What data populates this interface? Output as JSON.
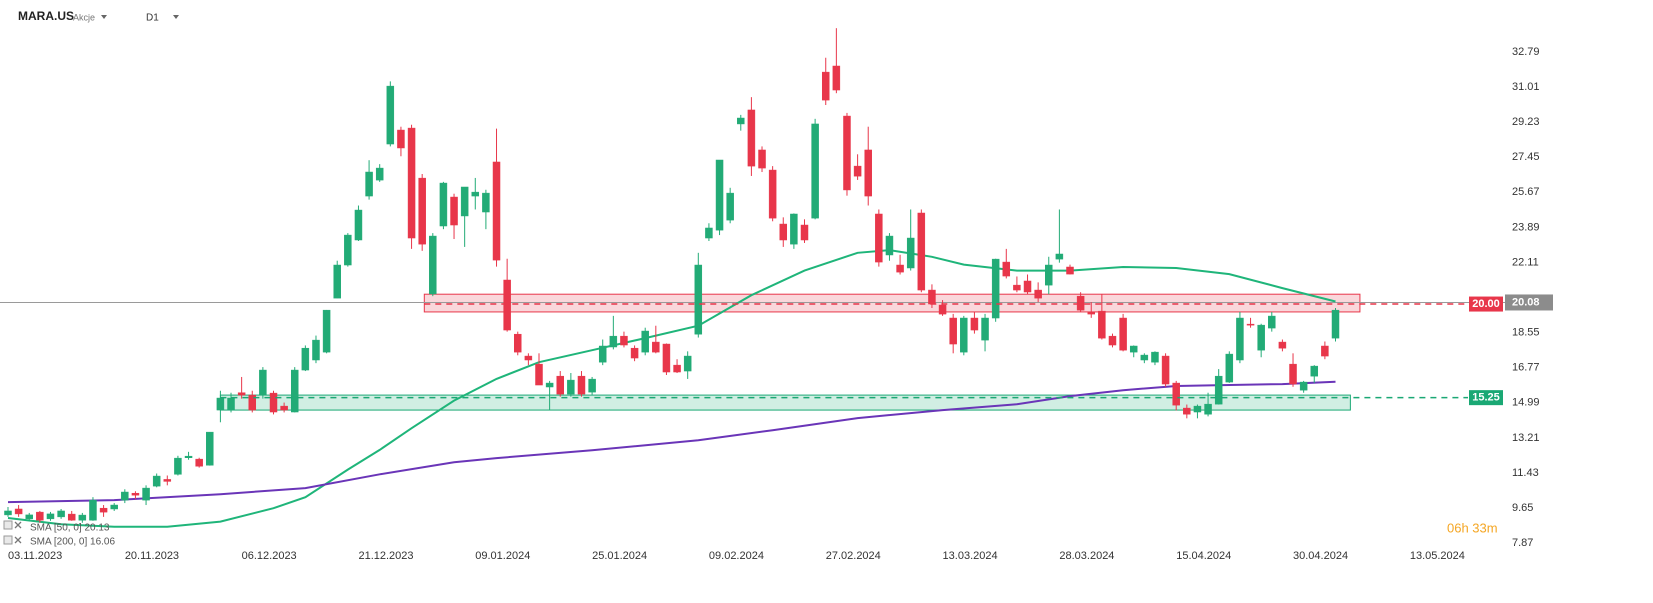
{
  "header": {
    "symbol": "MARA.US",
    "instrument_type": "Akcje",
    "interval": "D1"
  },
  "timer": "06h 33m",
  "chart_data": {
    "type": "candlestick",
    "up_color": "#22ab76",
    "down_color": "#e8364a",
    "ylim": [
      7.62,
      35.43
    ],
    "yticks": [
      7.87,
      9.65,
      11.43,
      13.21,
      14.99,
      16.77,
      18.55,
      22.11,
      23.89,
      25.67,
      27.45,
      29.23,
      31.01,
      32.79
    ],
    "xlim": [
      -0.753,
      140.96
    ],
    "xticks": [
      {
        "value": 0,
        "label": "03.11.2023"
      },
      {
        "value": 11,
        "label": "20.11.2023"
      },
      {
        "value": 22,
        "label": "06.12.2023"
      },
      {
        "value": 33,
        "label": "21.12.2023"
      },
      {
        "value": 44,
        "label": "09.01.2024"
      },
      {
        "value": 55,
        "label": "25.01.2024"
      },
      {
        "value": 66,
        "label": "09.02.2024"
      },
      {
        "value": 77,
        "label": "27.02.2024"
      },
      {
        "value": 88,
        "label": "13.03.2024"
      },
      {
        "value": 99,
        "label": "28.03.2024"
      },
      {
        "value": 110,
        "label": "15.04.2024"
      },
      {
        "value": 121,
        "label": "30.04.2024"
      },
      {
        "value": 132,
        "label": "13.05.2024"
      }
    ],
    "candles": [
      {
        "open": 9.3,
        "high": 9.7,
        "low": 9.2,
        "close": 9.5
      },
      {
        "open": 9.6,
        "high": 9.8,
        "low": 9.2,
        "close": 9.35
      },
      {
        "open": 9.1,
        "high": 9.4,
        "low": 9.0,
        "close": 9.3
      },
      {
        "open": 9.44,
        "high": 9.5,
        "low": 8.9,
        "close": 9.03
      },
      {
        "open": 9.1,
        "high": 9.45,
        "low": 9.0,
        "close": 9.35
      },
      {
        "open": 9.2,
        "high": 9.6,
        "low": 9.1,
        "close": 9.5
      },
      {
        "open": 9.34,
        "high": 9.5,
        "low": 9.0,
        "close": 9.03
      },
      {
        "open": 9.03,
        "high": 9.4,
        "low": 8.9,
        "close": 9.29
      },
      {
        "open": 9.03,
        "high": 10.2,
        "low": 9.0,
        "close": 10.05
      },
      {
        "open": 9.64,
        "high": 9.8,
        "low": 9.2,
        "close": 9.44
      },
      {
        "open": 9.6,
        "high": 9.9,
        "low": 9.5,
        "close": 9.8
      },
      {
        "open": 10.05,
        "high": 10.6,
        "low": 9.9,
        "close": 10.46
      },
      {
        "open": 10.4,
        "high": 10.5,
        "low": 10.1,
        "close": 10.3
      },
      {
        "open": 10.05,
        "high": 10.8,
        "low": 9.8,
        "close": 10.66
      },
      {
        "open": 10.76,
        "high": 11.4,
        "low": 10.7,
        "close": 11.27
      },
      {
        "open": 11.1,
        "high": 11.3,
        "low": 10.8,
        "close": 11.0
      },
      {
        "open": 11.36,
        "high": 12.3,
        "low": 11.3,
        "close": 12.18
      },
      {
        "open": 12.2,
        "high": 12.5,
        "low": 12.1,
        "close": 12.28
      },
      {
        "open": 12.13,
        "high": 12.2,
        "low": 11.7,
        "close": 11.77
      },
      {
        "open": 11.82,
        "high": 13.5,
        "low": 11.8,
        "close": 13.5
      },
      {
        "open": 14.62,
        "high": 15.6,
        "low": 14.0,
        "close": 15.23
      },
      {
        "open": 14.62,
        "high": 15.5,
        "low": 14.5,
        "close": 15.23
      },
      {
        "open": 15.5,
        "high": 16.3,
        "low": 15.2,
        "close": 15.38
      },
      {
        "open": 15.38,
        "high": 15.6,
        "low": 14.5,
        "close": 14.62
      },
      {
        "open": 15.38,
        "high": 16.8,
        "low": 15.2,
        "close": 16.65
      },
      {
        "open": 15.48,
        "high": 15.6,
        "low": 14.4,
        "close": 14.52
      },
      {
        "open": 14.82,
        "high": 15.0,
        "low": 14.5,
        "close": 14.62
      },
      {
        "open": 14.52,
        "high": 16.8,
        "low": 14.5,
        "close": 16.65
      },
      {
        "open": 16.65,
        "high": 17.9,
        "low": 16.6,
        "close": 17.76
      },
      {
        "open": 17.16,
        "high": 18.4,
        "low": 17.0,
        "close": 18.17
      },
      {
        "open": 17.56,
        "high": 19.7,
        "low": 17.5,
        "close": 19.69
      },
      {
        "open": 20.3,
        "high": 22.2,
        "low": 20.3,
        "close": 21.98
      },
      {
        "open": 21.98,
        "high": 23.6,
        "low": 21.9,
        "close": 23.5
      },
      {
        "open": 23.25,
        "high": 25.0,
        "low": 23.2,
        "close": 24.77
      },
      {
        "open": 25.48,
        "high": 27.3,
        "low": 25.3,
        "close": 26.7
      },
      {
        "open": 26.29,
        "high": 27.1,
        "low": 26.2,
        "close": 26.9
      },
      {
        "open": 28.12,
        "high": 31.3,
        "low": 28.0,
        "close": 31.06
      },
      {
        "open": 28.83,
        "high": 29.0,
        "low": 27.5,
        "close": 27.92
      },
      {
        "open": 28.93,
        "high": 29.1,
        "low": 22.8,
        "close": 23.35
      },
      {
        "open": 26.39,
        "high": 26.6,
        "low": 22.7,
        "close": 23.04
      },
      {
        "open": 20.51,
        "high": 23.6,
        "low": 20.4,
        "close": 23.45
      },
      {
        "open": 23.96,
        "high": 26.2,
        "low": 23.8,
        "close": 26.14
      },
      {
        "open": 25.43,
        "high": 25.6,
        "low": 23.3,
        "close": 24.01
      },
      {
        "open": 24.47,
        "high": 25.9,
        "low": 22.9,
        "close": 25.94
      },
      {
        "open": 25.48,
        "high": 26.4,
        "low": 24.8,
        "close": 25.68
      },
      {
        "open": 24.67,
        "high": 25.8,
        "low": 23.8,
        "close": 25.63
      },
      {
        "open": 27.21,
        "high": 28.9,
        "low": 21.9,
        "close": 22.23
      },
      {
        "open": 21.22,
        "high": 22.3,
        "low": 18.6,
        "close": 18.68
      },
      {
        "open": 18.47,
        "high": 18.6,
        "low": 17.4,
        "close": 17.56
      },
      {
        "open": 17.36,
        "high": 17.5,
        "low": 16.9,
        "close": 17.16
      },
      {
        "open": 16.95,
        "high": 17.5,
        "low": 15.9,
        "close": 15.89
      },
      {
        "open": 15.79,
        "high": 16.1,
        "low": 14.6,
        "close": 15.99
      },
      {
        "open": 16.34,
        "high": 16.6,
        "low": 15.3,
        "close": 15.43
      },
      {
        "open": 15.43,
        "high": 16.5,
        "low": 15.3,
        "close": 16.14
      },
      {
        "open": 16.34,
        "high": 16.6,
        "low": 15.3,
        "close": 15.43
      },
      {
        "open": 15.53,
        "high": 16.3,
        "low": 15.4,
        "close": 16.19
      },
      {
        "open": 17.05,
        "high": 18.2,
        "low": 16.9,
        "close": 17.87
      },
      {
        "open": 17.82,
        "high": 19.4,
        "low": 17.7,
        "close": 18.37
      },
      {
        "open": 18.37,
        "high": 18.6,
        "low": 17.8,
        "close": 17.92
      },
      {
        "open": 17.76,
        "high": 17.9,
        "low": 17.1,
        "close": 17.26
      },
      {
        "open": 17.56,
        "high": 18.8,
        "low": 17.4,
        "close": 18.63
      },
      {
        "open": 18.07,
        "high": 18.9,
        "low": 17.5,
        "close": 17.56
      },
      {
        "open": 17.97,
        "high": 18.0,
        "low": 16.4,
        "close": 16.55
      },
      {
        "open": 16.9,
        "high": 17.2,
        "low": 16.5,
        "close": 16.55
      },
      {
        "open": 16.6,
        "high": 17.6,
        "low": 16.2,
        "close": 17.36
      },
      {
        "open": 18.47,
        "high": 22.6,
        "low": 18.3,
        "close": 21.98
      },
      {
        "open": 23.35,
        "high": 24.1,
        "low": 23.2,
        "close": 23.86
      },
      {
        "open": 23.75,
        "high": 27.3,
        "low": 23.5,
        "close": 27.31
      },
      {
        "open": 24.26,
        "high": 25.9,
        "low": 24.1,
        "close": 25.63
      },
      {
        "open": 29.14,
        "high": 29.6,
        "low": 28.8,
        "close": 29.44
      },
      {
        "open": 29.85,
        "high": 30.5,
        "low": 26.5,
        "close": 27.0
      },
      {
        "open": 27.82,
        "high": 28.0,
        "low": 26.7,
        "close": 26.9
      },
      {
        "open": 26.8,
        "high": 27.0,
        "low": 24.2,
        "close": 24.36
      },
      {
        "open": 24.06,
        "high": 24.4,
        "low": 22.9,
        "close": 23.25
      },
      {
        "open": 23.04,
        "high": 24.6,
        "low": 22.8,
        "close": 24.57
      },
      {
        "open": 24.01,
        "high": 24.3,
        "low": 23.1,
        "close": 23.25
      },
      {
        "open": 24.36,
        "high": 29.4,
        "low": 24.3,
        "close": 29.14
      },
      {
        "open": 31.77,
        "high": 32.5,
        "low": 30.1,
        "close": 30.35
      },
      {
        "open": 32.08,
        "high": 34.0,
        "low": 30.7,
        "close": 30.86
      },
      {
        "open": 29.54,
        "high": 29.7,
        "low": 25.5,
        "close": 25.79
      },
      {
        "open": 27.0,
        "high": 27.6,
        "low": 26.3,
        "close": 26.49
      },
      {
        "open": 27.82,
        "high": 29.0,
        "low": 25.0,
        "close": 25.48
      },
      {
        "open": 24.57,
        "high": 24.8,
        "low": 21.9,
        "close": 22.13
      },
      {
        "open": 22.49,
        "high": 23.6,
        "low": 22.2,
        "close": 23.45
      },
      {
        "open": 21.98,
        "high": 22.5,
        "low": 21.5,
        "close": 21.62
      },
      {
        "open": 21.83,
        "high": 24.8,
        "low": 21.7,
        "close": 23.35
      },
      {
        "open": 24.62,
        "high": 24.8,
        "low": 20.6,
        "close": 20.71
      },
      {
        "open": 20.71,
        "high": 21.0,
        "low": 19.8,
        "close": 20.0
      },
      {
        "open": 19.95,
        "high": 20.2,
        "low": 19.4,
        "close": 19.49
      },
      {
        "open": 19.29,
        "high": 19.5,
        "low": 17.5,
        "close": 17.97
      },
      {
        "open": 17.56,
        "high": 19.4,
        "low": 17.4,
        "close": 19.29
      },
      {
        "open": 19.29,
        "high": 19.6,
        "low": 18.5,
        "close": 18.68
      },
      {
        "open": 18.17,
        "high": 19.5,
        "low": 17.6,
        "close": 19.29
      },
      {
        "open": 19.29,
        "high": 22.3,
        "low": 19.1,
        "close": 22.28
      },
      {
        "open": 22.13,
        "high": 22.8,
        "low": 21.3,
        "close": 21.42
      },
      {
        "open": 20.96,
        "high": 21.4,
        "low": 20.6,
        "close": 20.71
      },
      {
        "open": 21.17,
        "high": 21.5,
        "low": 20.5,
        "close": 20.61
      },
      {
        "open": 20.71,
        "high": 21.1,
        "low": 20.1,
        "close": 20.3
      },
      {
        "open": 20.96,
        "high": 22.4,
        "low": 20.5,
        "close": 21.98
      },
      {
        "open": 22.28,
        "high": 24.8,
        "low": 22.1,
        "close": 22.54
      },
      {
        "open": 21.88,
        "high": 22.0,
        "low": 21.5,
        "close": 21.52
      },
      {
        "open": 20.4,
        "high": 20.6,
        "low": 19.6,
        "close": 19.69
      },
      {
        "open": 19.59,
        "high": 20.1,
        "low": 19.3,
        "close": 19.49
      },
      {
        "open": 19.64,
        "high": 20.5,
        "low": 18.2,
        "close": 18.27
      },
      {
        "open": 18.37,
        "high": 18.5,
        "low": 17.8,
        "close": 17.92
      },
      {
        "open": 19.29,
        "high": 19.5,
        "low": 17.6,
        "close": 17.66
      },
      {
        "open": 17.56,
        "high": 17.9,
        "low": 17.3,
        "close": 17.87
      },
      {
        "open": 17.16,
        "high": 17.5,
        "low": 17.0,
        "close": 17.41
      },
      {
        "open": 17.05,
        "high": 17.6,
        "low": 16.9,
        "close": 17.56
      },
      {
        "open": 17.36,
        "high": 17.5,
        "low": 15.8,
        "close": 15.94
      },
      {
        "open": 15.99,
        "high": 16.1,
        "low": 14.6,
        "close": 14.87
      },
      {
        "open": 14.72,
        "high": 14.9,
        "low": 14.2,
        "close": 14.41
      },
      {
        "open": 14.52,
        "high": 14.9,
        "low": 14.2,
        "close": 14.82
      },
      {
        "open": 14.41,
        "high": 15.5,
        "low": 14.3,
        "close": 14.92
      },
      {
        "open": 14.92,
        "high": 16.7,
        "low": 14.9,
        "close": 16.34
      },
      {
        "open": 16.04,
        "high": 17.6,
        "low": 16.0,
        "close": 17.46
      },
      {
        "open": 17.16,
        "high": 19.6,
        "low": 17.0,
        "close": 19.29
      },
      {
        "open": 18.98,
        "high": 19.3,
        "low": 18.8,
        "close": 18.93
      },
      {
        "open": 17.66,
        "high": 19.0,
        "low": 17.3,
        "close": 18.93
      },
      {
        "open": 18.78,
        "high": 19.6,
        "low": 18.6,
        "close": 19.39
      },
      {
        "open": 18.07,
        "high": 18.2,
        "low": 17.6,
        "close": 17.76
      },
      {
        "open": 16.95,
        "high": 17.5,
        "low": 15.8,
        "close": 15.94
      },
      {
        "open": 15.63,
        "high": 16.1,
        "low": 15.5,
        "close": 16.04
      },
      {
        "open": 16.34,
        "high": 16.9,
        "low": 16.0,
        "close": 16.85
      },
      {
        "open": 17.87,
        "high": 18.1,
        "low": 17.2,
        "close": 17.36
      },
      {
        "open": 18.27,
        "high": 19.8,
        "low": 18.1,
        "close": 19.69
      }
    ],
    "overlays": [
      {
        "name": "SMA [50, 0] 20.13",
        "color": "#1fb57a",
        "x": [
          0,
          5,
          10,
          15,
          20,
          25,
          28,
          32,
          35,
          38,
          42,
          46,
          50,
          55,
          60,
          65,
          70,
          75,
          80,
          83,
          87,
          90,
          95,
          100,
          105,
          110,
          115,
          120,
          125
        ],
        "values": [
          9.14,
          8.83,
          8.7,
          8.7,
          8.96,
          9.64,
          10.2,
          11.6,
          12.6,
          13.7,
          15.1,
          16.2,
          17.05,
          17.66,
          18.27,
          18.9,
          20.45,
          21.7,
          22.6,
          22.74,
          22.4,
          22.0,
          21.7,
          21.7,
          21.88,
          21.83,
          21.52,
          20.81,
          20.13
        ]
      },
      {
        "name": "SMA [200, 0] 16.06",
        "color": "#6a35b8",
        "x": [
          0,
          10,
          20,
          28,
          35,
          42,
          46,
          55,
          65,
          72,
          80,
          88,
          95,
          100,
          105,
          110,
          115,
          120,
          125
        ],
        "values": [
          9.95,
          10.05,
          10.35,
          10.66,
          11.36,
          11.97,
          12.18,
          12.58,
          13.09,
          13.6,
          14.21,
          14.62,
          14.92,
          15.33,
          15.63,
          15.84,
          15.89,
          15.94,
          16.06
        ]
      }
    ],
    "zones": [
      {
        "low": 19.6,
        "high": 20.5,
        "start": 39.2,
        "end": 127.3,
        "color": "#e8364a"
      },
      {
        "low": 14.62,
        "high": 15.38,
        "start": 20,
        "end": 126.4,
        "color": "#1aa874"
      }
    ],
    "levels": [
      {
        "value": 20.0,
        "label": "20.00",
        "color": "#e8364a"
      },
      {
        "value": 15.25,
        "label": "15.25",
        "color": "#1aa874"
      }
    ],
    "last_price": 20.08
  }
}
